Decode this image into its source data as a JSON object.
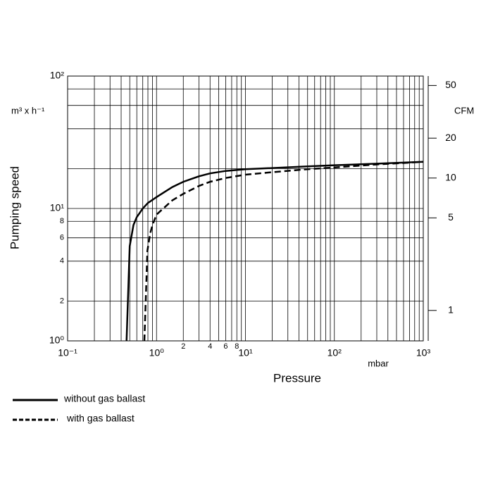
{
  "chart_data": {
    "type": "line",
    "xlabel": "Pressure",
    "xunit": "mbar",
    "ylabel": "Pumping speed",
    "yunit": "m³ x h⁻¹",
    "y2unit": "CFM",
    "xscale": "log",
    "yscale": "log",
    "xlim": [
      0.1,
      1000
    ],
    "ylim": [
      1,
      100
    ],
    "y2lim": [
      0.589,
      58.9
    ],
    "xticks": [
      {
        "value": 0.1,
        "label": "10⁻¹"
      },
      2,
      4,
      6,
      8,
      {
        "value": 1,
        "label": "10⁰"
      },
      {
        "value": 10,
        "label": "10¹"
      },
      {
        "value": 100,
        "label": "10²"
      },
      {
        "value": 1000,
        "label": "10³"
      }
    ],
    "yticks": [
      {
        "value": 1,
        "label": "10⁰"
      },
      2,
      4,
      6,
      8,
      {
        "value": 10,
        "label": "10¹"
      },
      {
        "value": 100,
        "label": "10²"
      }
    ],
    "y2ticks": [
      1,
      5,
      10,
      20,
      50
    ],
    "xgrid": [
      0.1,
      0.2,
      0.3,
      0.4,
      0.5,
      0.6,
      0.7,
      0.8,
      0.9,
      1,
      2,
      3,
      4,
      5,
      6,
      7,
      8,
      9,
      10,
      20,
      30,
      40,
      50,
      60,
      70,
      80,
      90,
      100,
      200,
      300,
      400,
      500,
      600,
      700,
      800,
      900,
      1000
    ],
    "ygrid": [
      1,
      2,
      4,
      6,
      8,
      10,
      20,
      40,
      60,
      80,
      100
    ],
    "series": [
      {
        "name": "without gas ballast",
        "color": "#000000",
        "dashed": false,
        "x": [
          0.46,
          0.5,
          0.55,
          0.6,
          0.7,
          0.8,
          1,
          1.5,
          2,
          3,
          4,
          6,
          10,
          20,
          50,
          100,
          300,
          1000
        ],
        "values": [
          1,
          5.2,
          7.5,
          8.6,
          10,
          11,
          12.2,
          14.5,
          15.9,
          17.5,
          18.4,
          19.2,
          19.8,
          20.2,
          20.8,
          21.2,
          21.8,
          22.5
        ]
      },
      {
        "name": "with gas ballast",
        "color": "#000000",
        "dashed": true,
        "x": [
          0.73,
          0.79,
          0.85,
          0.9,
          1,
          1.5,
          2,
          3,
          4,
          6,
          10,
          20,
          50,
          100,
          300,
          1000
        ],
        "values": [
          1,
          4.8,
          6.5,
          7.5,
          9,
          11.5,
          12.9,
          14.8,
          15.9,
          17,
          18,
          18.8,
          19.8,
          20.4,
          21.5,
          22.5
        ]
      }
    ]
  }
}
